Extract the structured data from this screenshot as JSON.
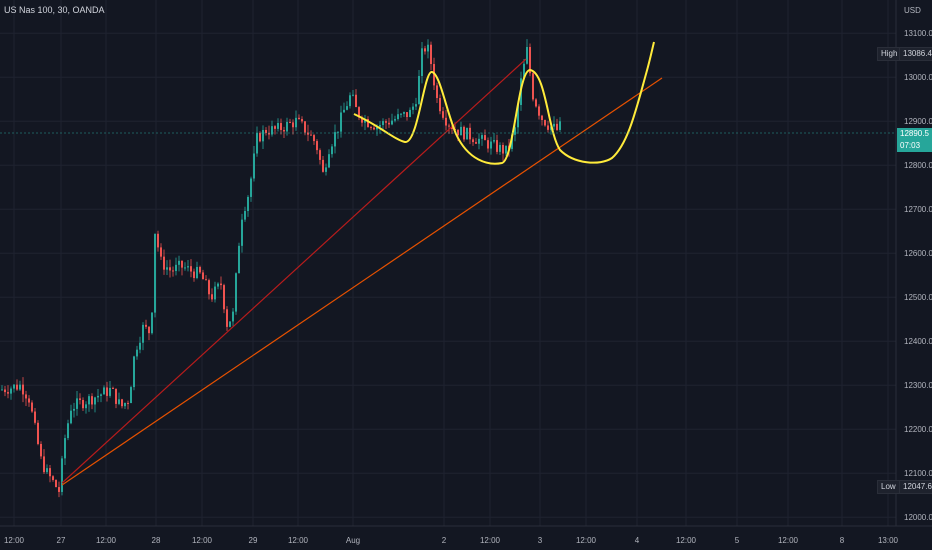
{
  "header": {
    "title": "US Nas 100, 30, OANDA",
    "currency": "USD"
  },
  "labels": {
    "high_label": "High",
    "high_value": "13086.4",
    "low_label": "Low",
    "low_value": "12047.6",
    "last_price": "12890.5",
    "countdown": "07:03"
  },
  "colors": {
    "up": "#26a69a",
    "down": "#ef5350",
    "trend_red": "#b71c1c",
    "trend_orange": "#e65100",
    "drawing": "#ffeb3b"
  },
  "chart_data": {
    "type": "candlestick",
    "y_ticks": [
      "13100.0",
      "13000.0",
      "12900.0",
      "12800.0",
      "12700.0",
      "12600.0",
      "12500.0",
      "12400.0",
      "12300.0",
      "12200.0",
      "12100.0",
      "12000.0"
    ],
    "x_ticks": [
      "12:00",
      "27",
      "12:00",
      "28",
      "12:00",
      "29",
      "12:00",
      "Aug",
      "2",
      "12:00",
      "3",
      "12:00",
      "4",
      "12:00",
      "5",
      "12:00",
      "8",
      "13:00"
    ],
    "ylim": [
      11980,
      13130
    ],
    "price_path": [
      [
        0,
        12290
      ],
      [
        10,
        12295
      ],
      [
        20,
        12300
      ],
      [
        28,
        12270
      ],
      [
        34,
        12200
      ],
      [
        40,
        12130
      ],
      [
        46,
        12100
      ],
      [
        52,
        12080
      ],
      [
        58,
        12060
      ],
      [
        64,
        12180
      ],
      [
        70,
        12250
      ],
      [
        80,
        12260
      ],
      [
        90,
        12270
      ],
      [
        100,
        12280
      ],
      [
        110,
        12290
      ],
      [
        120,
        12250
      ],
      [
        128,
        12270
      ],
      [
        134,
        12380
      ],
      [
        142,
        12430
      ],
      [
        150,
        12420
      ],
      [
        154,
        12650
      ],
      [
        160,
        12580
      ],
      [
        170,
        12560
      ],
      [
        180,
        12570
      ],
      [
        190,
        12560
      ],
      [
        200,
        12550
      ],
      [
        210,
        12500
      ],
      [
        220,
        12530
      ],
      [
        226,
        12440
      ],
      [
        232,
        12460
      ],
      [
        240,
        12680
      ],
      [
        248,
        12740
      ],
      [
        256,
        12860
      ],
      [
        265,
        12880
      ],
      [
        275,
        12880
      ],
      [
        285,
        12890
      ],
      [
        295,
        12900
      ],
      [
        305,
        12880
      ],
      [
        315,
        12850
      ],
      [
        322,
        12780
      ],
      [
        328,
        12840
      ],
      [
        336,
        12880
      ],
      [
        344,
        12930
      ],
      [
        350,
        12960
      ],
      [
        356,
        12920
      ],
      [
        366,
        12900
      ],
      [
        376,
        12890
      ],
      [
        388,
        12900
      ],
      [
        400,
        12910
      ],
      [
        410,
        12920
      ],
      [
        416,
        12960
      ],
      [
        422,
        13070
      ],
      [
        428,
        13060
      ],
      [
        436,
        12950
      ],
      [
        446,
        12900
      ],
      [
        456,
        12880
      ],
      [
        466,
        12870
      ],
      [
        476,
        12860
      ],
      [
        486,
        12850
      ],
      [
        496,
        12840
      ],
      [
        506,
        12830
      ],
      [
        514,
        12880
      ],
      [
        520,
        12990
      ],
      [
        526,
        13060
      ],
      [
        532,
        12960
      ],
      [
        540,
        12910
      ],
      [
        548,
        12890
      ],
      [
        556,
        12880
      ],
      [
        560,
        12890
      ]
    ]
  }
}
